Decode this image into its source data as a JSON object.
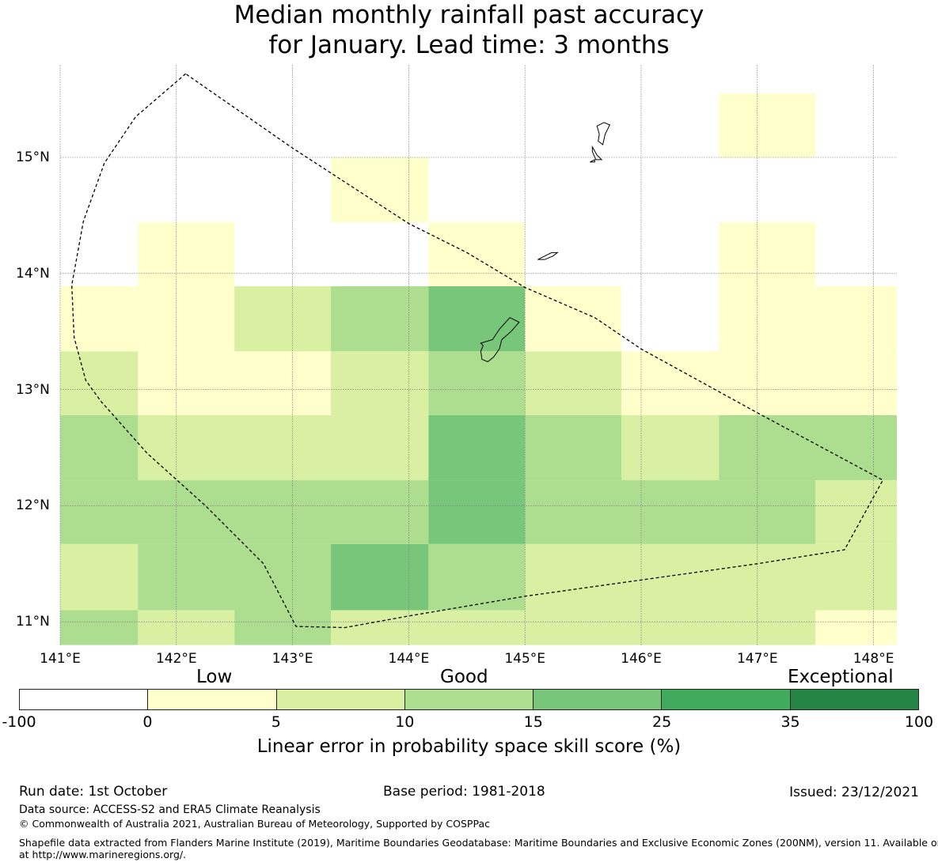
{
  "title": {
    "line1": "Median monthly rainfall past accuracy",
    "line2": "for January. Lead time: 3 months"
  },
  "map": {
    "lon_ticks": [
      "141°E",
      "142°E",
      "143°E",
      "144°E",
      "145°E",
      "146°E",
      "147°E",
      "148°E"
    ],
    "lat_ticks": [
      "15°N",
      "14°N",
      "13°N",
      "12°N",
      "11°N"
    ],
    "lon_values": [
      141,
      142,
      143,
      144,
      145,
      146,
      147,
      148
    ],
    "lat_values": [
      15,
      14,
      13,
      12,
      11
    ],
    "lon_range": [
      141,
      148.2
    ],
    "lat_range": [
      10.8,
      15.8
    ],
    "cell_size_deg": 0.833,
    "skill_category_colors": {
      "0": "#ffffcc",
      "1": "#d9f0a3",
      "2": "#addd8e",
      "3": "#78c679"
    },
    "grid_cells": [
      {
        "lon0": 147.5,
        "lon1": 148.2,
        "lat0": 10.8,
        "lat1": 11.1,
        "cat": 0
      },
      {
        "lon0": 141.0,
        "lon1": 141.67,
        "lat0": 10.8,
        "lat1": 11.1,
        "cat": 2
      },
      {
        "lon0": 141.67,
        "lon1": 142.5,
        "lat0": 10.8,
        "lat1": 11.1,
        "cat": 1
      },
      {
        "lon0": 142.5,
        "lon1": 143.33,
        "lat0": 10.8,
        "lat1": 11.1,
        "cat": 2
      },
      {
        "lon0": 143.33,
        "lon1": 147.5,
        "lat0": 10.8,
        "lat1": 11.1,
        "cat": 1
      },
      {
        "lon0": 141.0,
        "lon1": 141.67,
        "lat0": 11.1,
        "lat1": 11.67,
        "cat": 1
      },
      {
        "lon0": 141.67,
        "lon1": 143.33,
        "lat0": 11.1,
        "lat1": 11.67,
        "cat": 2
      },
      {
        "lon0": 143.33,
        "lon1": 144.17,
        "lat0": 11.1,
        "lat1": 11.67,
        "cat": 3
      },
      {
        "lon0": 144.17,
        "lon1": 145.0,
        "lat0": 11.1,
        "lat1": 11.67,
        "cat": 2
      },
      {
        "lon0": 145.0,
        "lon1": 148.2,
        "lat0": 11.1,
        "lat1": 11.67,
        "cat": 1
      },
      {
        "lon0": 141.0,
        "lon1": 144.17,
        "lat0": 11.67,
        "lat1": 12.22,
        "cat": 2
      },
      {
        "lon0": 144.17,
        "lon1": 145.0,
        "lat0": 11.67,
        "lat1": 12.22,
        "cat": 3
      },
      {
        "lon0": 145.0,
        "lon1": 147.5,
        "lat0": 11.67,
        "lat1": 12.22,
        "cat": 2
      },
      {
        "lon0": 147.5,
        "lon1": 148.2,
        "lat0": 11.67,
        "lat1": 12.22,
        "cat": 1
      },
      {
        "lon0": 141.0,
        "lon1": 141.67,
        "lat0": 12.22,
        "lat1": 12.78,
        "cat": 2
      },
      {
        "lon0": 141.67,
        "lon1": 144.17,
        "lat0": 12.22,
        "lat1": 12.78,
        "cat": 1
      },
      {
        "lon0": 144.17,
        "lon1": 145.0,
        "lat0": 12.22,
        "lat1": 12.78,
        "cat": 3
      },
      {
        "lon0": 145.0,
        "lon1": 145.83,
        "lat0": 12.22,
        "lat1": 12.78,
        "cat": 2
      },
      {
        "lon0": 145.83,
        "lon1": 146.67,
        "lat0": 12.22,
        "lat1": 12.78,
        "cat": 1
      },
      {
        "lon0": 146.67,
        "lon1": 148.2,
        "lat0": 12.22,
        "lat1": 12.78,
        "cat": 2
      },
      {
        "lon0": 141.0,
        "lon1": 141.67,
        "lat0": 12.78,
        "lat1": 13.33,
        "cat": 1
      },
      {
        "lon0": 141.67,
        "lon1": 143.33,
        "lat0": 12.78,
        "lat1": 13.33,
        "cat": 0
      },
      {
        "lon0": 143.33,
        "lon1": 144.17,
        "lat0": 12.78,
        "lat1": 13.33,
        "cat": 1
      },
      {
        "lon0": 144.17,
        "lon1": 145.0,
        "lat0": 12.78,
        "lat1": 13.33,
        "cat": 2
      },
      {
        "lon0": 145.0,
        "lon1": 145.83,
        "lat0": 12.78,
        "lat1": 13.33,
        "cat": 1
      },
      {
        "lon0": 145.83,
        "lon1": 148.2,
        "lat0": 12.78,
        "lat1": 13.33,
        "cat": 0
      },
      {
        "lon0": 141.0,
        "lon1": 142.5,
        "lat0": 13.33,
        "lat1": 13.89,
        "cat": 0
      },
      {
        "lon0": 142.5,
        "lon1": 143.33,
        "lat0": 13.33,
        "lat1": 13.89,
        "cat": 1
      },
      {
        "lon0": 143.33,
        "lon1": 144.17,
        "lat0": 13.33,
        "lat1": 13.89,
        "cat": 2
      },
      {
        "lon0": 144.17,
        "lon1": 145.0,
        "lat0": 13.33,
        "lat1": 13.89,
        "cat": 3
      },
      {
        "lon0": 145.0,
        "lon1": 145.83,
        "lat0": 13.33,
        "lat1": 13.89,
        "cat": 0
      },
      {
        "lon0": 146.67,
        "lon1": 148.2,
        "lat0": 13.33,
        "lat1": 13.89,
        "cat": 0
      },
      {
        "lon0": 141.67,
        "lon1": 142.5,
        "lat0": 13.89,
        "lat1": 14.44,
        "cat": 0
      },
      {
        "lon0": 144.17,
        "lon1": 145.0,
        "lat0": 13.89,
        "lat1": 14.44,
        "cat": 0
      },
      {
        "lon0": 146.67,
        "lon1": 147.5,
        "lat0": 13.89,
        "lat1": 14.44,
        "cat": 0
      },
      {
        "lon0": 143.33,
        "lon1": 144.17,
        "lat0": 14.44,
        "lat1": 15.0,
        "cat": 0
      },
      {
        "lon0": 146.67,
        "lon1": 147.5,
        "lat0": 15.0,
        "lat1": 15.55,
        "cat": 0
      }
    ],
    "eez_boundary": [
      [
        142.08,
        15.72
      ],
      [
        141.65,
        15.35
      ],
      [
        141.38,
        14.95
      ],
      [
        141.2,
        14.45
      ],
      [
        141.1,
        13.9
      ],
      [
        141.12,
        13.45
      ],
      [
        141.22,
        13.08
      ],
      [
        141.35,
        12.9
      ],
      [
        141.75,
        12.45
      ],
      [
        142.25,
        12.0
      ],
      [
        142.75,
        11.5
      ],
      [
        143.03,
        10.96
      ],
      [
        143.45,
        10.95
      ],
      [
        144.0,
        11.05
      ],
      [
        145.0,
        11.22
      ],
      [
        146.0,
        11.36
      ],
      [
        147.0,
        11.5
      ],
      [
        147.75,
        11.62
      ],
      [
        148.08,
        12.22
      ],
      [
        147.0,
        12.8
      ],
      [
        146.0,
        13.35
      ],
      [
        145.6,
        13.62
      ],
      [
        145.0,
        13.88
      ],
      [
        144.5,
        14.18
      ],
      [
        144.0,
        14.43
      ],
      [
        143.0,
        15.08
      ],
      [
        142.08,
        15.72
      ]
    ],
    "islands": [
      [
        [
          144.62,
          13.4
        ],
        [
          144.72,
          13.43
        ],
        [
          144.78,
          13.52
        ],
        [
          144.87,
          13.62
        ],
        [
          144.95,
          13.58
        ],
        [
          144.88,
          13.5
        ],
        [
          144.8,
          13.43
        ],
        [
          144.78,
          13.35
        ],
        [
          144.73,
          13.28
        ],
        [
          144.68,
          13.24
        ],
        [
          144.63,
          13.26
        ],
        [
          144.62,
          13.33
        ],
        [
          144.64,
          13.38
        ],
        [
          144.62,
          13.4
        ]
      ],
      [
        [
          145.11,
          14.12
        ],
        [
          145.17,
          14.15
        ],
        [
          145.23,
          14.18
        ],
        [
          145.28,
          14.18
        ],
        [
          145.24,
          14.15
        ],
        [
          145.17,
          14.12
        ],
        [
          145.11,
          14.12
        ]
      ],
      [
        [
          145.62,
          15.27
        ],
        [
          145.68,
          15.3
        ],
        [
          145.73,
          15.28
        ],
        [
          145.69,
          15.2
        ],
        [
          145.67,
          15.11
        ],
        [
          145.63,
          15.14
        ],
        [
          145.64,
          15.2
        ],
        [
          145.62,
          15.27
        ]
      ],
      [
        [
          145.56,
          14.96
        ],
        [
          145.6,
          14.96
        ],
        [
          145.6,
          14.98
        ],
        [
          145.56,
          14.96
        ]
      ],
      [
        [
          145.58,
          15.09
        ],
        [
          145.62,
          15.02
        ],
        [
          145.66,
          14.98
        ],
        [
          145.61,
          14.98
        ],
        [
          145.58,
          15.05
        ],
        [
          145.58,
          15.09
        ]
      ]
    ]
  },
  "colorbar": {
    "category_labels": {
      "low": "Low",
      "good": "Good",
      "exceptional": "Exceptional"
    },
    "colors": [
      "#ffffff",
      "#ffffcc",
      "#d9f0a3",
      "#addd8e",
      "#78c679",
      "#41ab5d",
      "#238443"
    ],
    "ticks": [
      "-100",
      "0",
      "5",
      "10",
      "15",
      "25",
      "35",
      "100"
    ],
    "label": "Linear error in probability space skill score (%)"
  },
  "footer": {
    "run_date": "Run date: 1st October",
    "base_period": "Base period: 1981-2018",
    "issued": "Issued: 23/12/2021",
    "data_source": "Data source: ACCESS-S2 and ERA5 Climate Reanalysis",
    "copyright": "© Commonwealth of Australia 2021, Australian Bureau of Meteorology, Supported by COSPPac",
    "shapefile_line1": "Shapefile data extracted from Flanders Marine Institute (2019), Maritime Boundaries Geodatabase: Maritime Boundaries and Exclusive Economic Zones (200NM), version 11. Available online",
    "shapefile_line2": "at http://www.marineregions.org/."
  }
}
